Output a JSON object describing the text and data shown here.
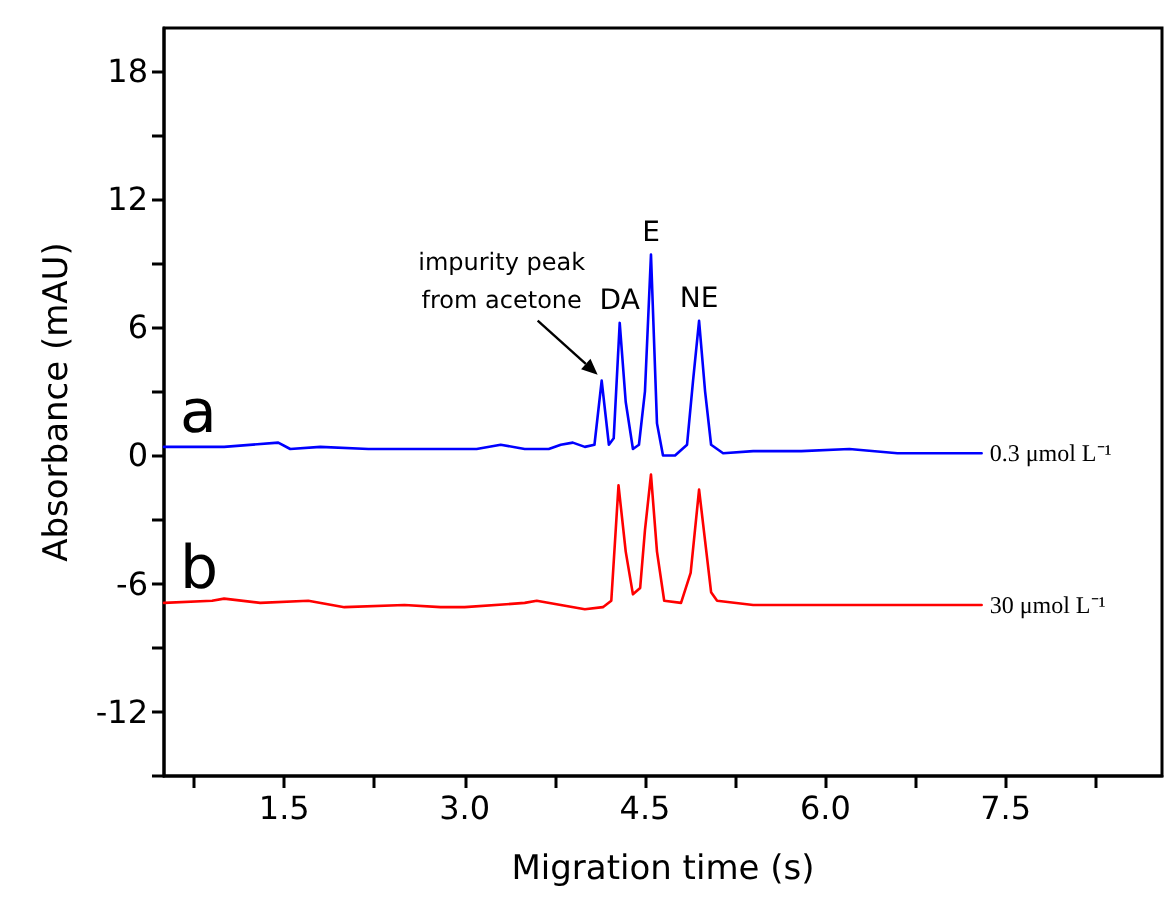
{
  "chart_data": {
    "type": "line",
    "xlabel": "Migration time (s)",
    "ylabel": "Absorbance (mAU)",
    "xlim": [
      0.5,
      8.8
    ],
    "ylim": [
      -15,
      20
    ],
    "xticks": [
      {
        "value": 0.75,
        "label": null
      },
      1.5,
      {
        "value": 2.25,
        "label": null
      },
      {
        "value": 3,
        "label": "3.0"
      },
      {
        "value": 3.75,
        "label": null
      },
      4.5,
      {
        "value": 5.25,
        "label": null
      },
      {
        "value": 6,
        "label": "6.0"
      },
      {
        "value": 6.75,
        "label": null
      },
      7.5,
      {
        "value": 8.25,
        "label": null
      }
    ],
    "yticks": [
      {
        "value": -15,
        "label": null
      },
      -12,
      {
        "value": -9,
        "label": null
      },
      -6,
      {
        "value": -3,
        "label": null
      },
      0,
      {
        "value": 3,
        "label": null
      },
      6,
      {
        "value": 9,
        "label": null
      },
      12,
      {
        "value": 15,
        "label": null
      },
      18
    ],
    "grid": false,
    "legend": false,
    "marker": "none",
    "line_style": "solid",
    "series": [
      {
        "name": "a",
        "color": "#0000ff",
        "x": [
          0.5,
          1.0,
          1.45,
          1.55,
          1.8,
          2.2,
          2.6,
          3.0,
          3.1,
          3.3,
          3.5,
          3.7,
          3.8,
          3.9,
          4.0,
          4.08,
          4.14,
          4.2,
          4.24,
          4.29,
          4.34,
          4.4,
          4.45,
          4.5,
          4.55,
          4.6,
          4.65,
          4.75,
          4.85,
          4.9,
          4.95,
          5.0,
          5.05,
          5.15,
          5.4,
          5.8,
          6.2,
          6.6,
          7.0,
          7.3
        ],
        "values": [
          0.4,
          0.4,
          0.6,
          0.3,
          0.4,
          0.3,
          0.3,
          0.3,
          0.3,
          0.5,
          0.3,
          0.3,
          0.5,
          0.6,
          0.4,
          0.5,
          3.5,
          0.5,
          0.8,
          6.2,
          2.5,
          0.3,
          0.5,
          3.0,
          9.4,
          1.5,
          0.0,
          0.0,
          0.5,
          3.5,
          6.3,
          3.0,
          0.5,
          0.1,
          0.2,
          0.2,
          0.3,
          0.1,
          0.1,
          0.1
        ]
      },
      {
        "name": "b",
        "color": "#ff0000",
        "x": [
          0.5,
          0.9,
          1.0,
          1.3,
          1.7,
          2.0,
          2.5,
          2.8,
          3.0,
          3.5,
          3.6,
          3.8,
          4.0,
          4.15,
          4.22,
          4.28,
          4.34,
          4.4,
          4.46,
          4.5,
          4.55,
          4.6,
          4.66,
          4.8,
          4.88,
          4.95,
          5.0,
          5.05,
          5.1,
          5.4,
          5.8,
          6.0,
          6.4,
          6.8,
          7.3
        ],
        "values": [
          -6.9,
          -6.8,
          -6.7,
          -6.9,
          -6.8,
          -7.1,
          -7.0,
          -7.1,
          -7.1,
          -6.9,
          -6.8,
          -7.0,
          -7.2,
          -7.1,
          -6.8,
          -1.4,
          -4.5,
          -6.5,
          -6.2,
          -3.5,
          -0.9,
          -4.5,
          -6.8,
          -6.9,
          -5.5,
          -1.6,
          -4.0,
          -6.4,
          -6.8,
          -7.0,
          -7.0,
          -7.0,
          -7.0,
          -7.0,
          -7.0
        ]
      }
    ],
    "annotations": [
      {
        "text": "impurity peak\nfrom acetone",
        "x": 4.14,
        "y": 3.5
      },
      {
        "text": "DA",
        "x": 4.29,
        "y": 6.2
      },
      {
        "text": "E",
        "x": 4.55,
        "y": 9.4
      },
      {
        "text": "NE",
        "x": 4.95,
        "y": 6.3
      },
      {
        "text": "0.3 μmol L⁻¹",
        "x": 7.3,
        "y": 0.1
      },
      {
        "text": "30 μmol L⁻¹",
        "x": 7.3,
        "y": -7.0
      }
    ]
  }
}
